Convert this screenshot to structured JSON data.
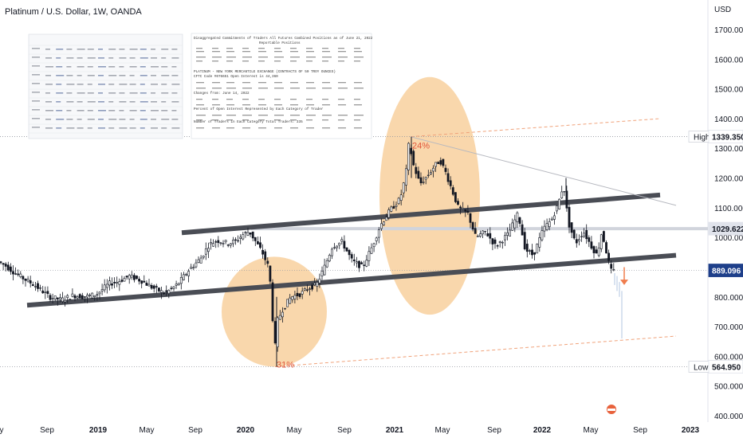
{
  "header": {
    "title": "Platinum / U.S. Dollar, 1W, OANDA"
  },
  "colors": {
    "up": "#131722",
    "down": "#131722",
    "channel": "#4a4d55",
    "ellipse": "#f7c990",
    "dashed": "#f0a27a",
    "arrow": "#f07d4e",
    "muted": "#b2c4e0",
    "price_badge": "#1e3f8a"
  },
  "cot_report": {
    "heading": "Disaggregated Commitments of Traders All Futures Combined Positions as of June 21, 2022",
    "subheading": "Reportable Positions",
    "exchange_line": "PLATINUM - NEW YORK MERCANTILE EXCHANGE   (CONTRACTS OF 50 TROY OUNCES)",
    "code_line": "CFTC Code #076651                         Open Interest is   44,360",
    "changes_line": "Changes from:     June 14, 2022",
    "percent_line": "Percent of Open Interest Represented by Each Category of Trader",
    "traders_line": "Number of Traders in Each Category                      Total Traders:   335"
  },
  "chart_data": {
    "type": "candlestick",
    "title": "Platinum / U.S. Dollar, 1W, OANDA",
    "currency": "USD",
    "y_ticks": [
      400,
      500,
      600,
      700,
      800,
      900,
      1000,
      1100,
      1200,
      1300,
      1400,
      1500,
      1600,
      1700
    ],
    "y_tick_labels": [
      "400.000",
      "500.000",
      "600.000",
      "700.000",
      "800.000",
      "",
      "1000.000",
      "1100.000",
      "1200.000",
      "1300.000",
      "1400.000",
      "1500.000",
      "1600.000",
      "1700.000"
    ],
    "ylim": [
      385,
      1755
    ],
    "x_tick_labels": [
      "y",
      "Sep",
      "2019",
      "May",
      "Sep",
      "2020",
      "May",
      "Sep",
      "2021",
      "May",
      "Sep",
      "2022",
      "May",
      "Sep",
      "2023"
    ],
    "price_labels": [
      {
        "name": "High",
        "value": "1339.350"
      },
      {
        "name": "",
        "value": "1029.622"
      },
      {
        "name": "",
        "value": "889.096"
      },
      {
        "name": "Low",
        "value": "564.950"
      }
    ],
    "annotations": [
      "24%",
      "31%"
    ],
    "price_series": [
      [
        0,
        920
      ],
      [
        10,
        905
      ],
      [
        22,
        880
      ],
      [
        35,
        858
      ],
      [
        45,
        842
      ],
      [
        55,
        822
      ],
      [
        65,
        800
      ],
      [
        80,
        790
      ],
      [
        95,
        805
      ],
      [
        110,
        800
      ],
      [
        125,
        810
      ],
      [
        140,
        845
      ],
      [
        150,
        850
      ],
      [
        165,
        870
      ],
      [
        180,
        855
      ],
      [
        195,
        830
      ],
      [
        210,
        812
      ],
      [
        225,
        840
      ],
      [
        240,
        890
      ],
      [
        255,
        930
      ],
      [
        265,
        975
      ],
      [
        275,
        990
      ],
      [
        290,
        980
      ],
      [
        300,
        990
      ],
      [
        308,
        1010
      ],
      [
        316,
        1020
      ],
      [
        324,
        985
      ],
      [
        332,
        950
      ],
      [
        340,
        900
      ],
      [
        344,
        800
      ],
      [
        347,
        600
      ],
      [
        351,
        720
      ],
      [
        358,
        760
      ],
      [
        368,
        800
      ],
      [
        380,
        810
      ],
      [
        390,
        830
      ],
      [
        400,
        840
      ],
      [
        410,
        900
      ],
      [
        420,
        970
      ],
      [
        432,
        985
      ],
      [
        445,
        920
      ],
      [
        458,
        900
      ],
      [
        470,
        970
      ],
      [
        480,
        1040
      ],
      [
        492,
        1090
      ],
      [
        505,
        1130
      ],
      [
        512,
        1210
      ],
      [
        516,
        1320
      ],
      [
        522,
        1240
      ],
      [
        530,
        1180
      ],
      [
        540,
        1210
      ],
      [
        548,
        1240
      ],
      [
        555,
        1260
      ],
      [
        562,
        1220
      ],
      [
        570,
        1160
      ],
      [
        578,
        1100
      ],
      [
        590,
        1080
      ],
      [
        600,
        1000
      ],
      [
        612,
        1020
      ],
      [
        625,
        970
      ],
      [
        640,
        1010
      ],
      [
        653,
        1080
      ],
      [
        662,
        960
      ],
      [
        672,
        940
      ],
      [
        685,
        1030
      ],
      [
        695,
        1060
      ],
      [
        703,
        1110
      ],
      [
        710,
        1180
      ],
      [
        716,
        1050
      ],
      [
        725,
        980
      ],
      [
        735,
        1020
      ],
      [
        745,
        970
      ],
      [
        752,
        940
      ],
      [
        758,
        1020
      ],
      [
        763,
        960
      ],
      [
        768,
        900
      ],
      [
        771,
        880
      ]
    ]
  }
}
